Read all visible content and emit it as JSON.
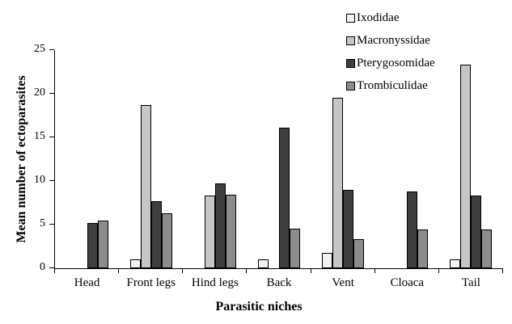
{
  "chart_data": {
    "type": "bar",
    "title": "",
    "xlabel": "Parasitic niches",
    "ylabel": "Mean number of ectoparasites",
    "categories": [
      "Head",
      "Front legs",
      "Hind legs",
      "Back",
      "Vent",
      "Cloaca",
      "Tail"
    ],
    "series": [
      {
        "name": "Ixodidae",
        "color": "#f2f2f2",
        "values": [
          0,
          1.0,
          0,
          1.0,
          1.8,
          0,
          1.0
        ]
      },
      {
        "name": "Macronyssidae",
        "color": "#c6c6c6",
        "values": [
          0,
          18.7,
          8.3,
          0,
          19.5,
          0,
          23.3
        ]
      },
      {
        "name": "Pterygosomidae",
        "color": "#3f3f3f",
        "values": [
          5.2,
          7.7,
          9.7,
          16.1,
          9.0,
          8.8,
          8.3
        ]
      },
      {
        "name": "Trombiculidae",
        "color": "#8c8c8c",
        "values": [
          5.5,
          6.3,
          8.4,
          4.5,
          3.3,
          4.4,
          4.4
        ]
      }
    ],
    "ylim": [
      0,
      25
    ],
    "yticks": [
      0,
      5,
      10,
      15,
      20,
      25
    ],
    "grid": false,
    "legend_position": "top-right",
    "bar_border_color": "#000000",
    "axis_color": "#000000"
  }
}
